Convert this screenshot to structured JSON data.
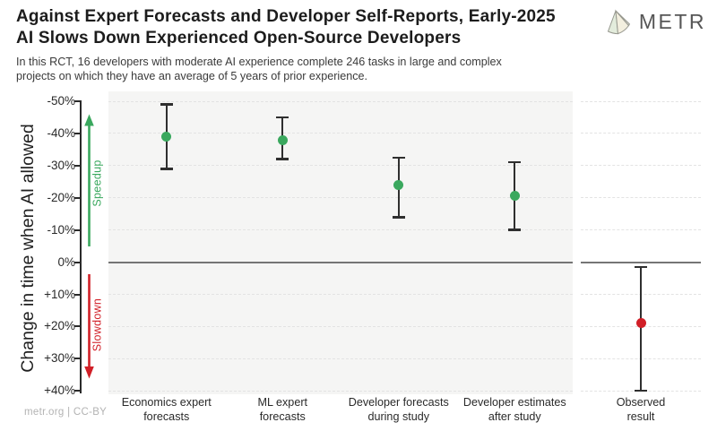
{
  "header": {
    "title_line1": "Against Expert Forecasts and Developer Self-Reports, Early-2025",
    "title_line2": "AI Slows Down Experienced Open-Source Developers",
    "subtitle_line1": "In this RCT, 16 developers with moderate AI experience complete 246 tasks in large and complex",
    "subtitle_line2": "projects on which they have an average of 5 years of prior experience.",
    "logo_text": "METR"
  },
  "footer": {
    "credit": "metr.org | CC-BY"
  },
  "colors": {
    "speedup_green": "#3aa85e",
    "slowdown_red": "#d11f27",
    "errorbar": "#2f2f2f",
    "panel_background": "#f5f5f4",
    "gridline": "#e3e3e3",
    "zero_line": "#757575"
  },
  "chart_data": {
    "type": "scatter",
    "title": "Against Expert Forecasts and Developer Self-Reports, Early-2025 AI Slows Down Experienced Open-Source Developers",
    "subtitle": "In this RCT, 16 developers with moderate AI experience complete 246 tasks in large and complex projects on which they have an average of 5 years of prior experience.",
    "ylabel": "Change in time when AI allowed",
    "ylim": [
      -50,
      40
    ],
    "y_axis_inverted_note": "negative (speedup) values at top, positive (slowdown) at bottom",
    "grid": "horizontal dashed gridlines at each 10% tick; solid gray line at 0%",
    "ytick_values": [
      -50,
      -40,
      -30,
      -20,
      -10,
      0,
      10,
      20,
      30,
      40
    ],
    "ytick_labels": [
      "-50%",
      "-40%",
      "-30%",
      "-20%",
      "-10%",
      "0%",
      "+10%",
      "+20%",
      "+30%",
      "+40%"
    ],
    "annotations": {
      "speedup": "Speedup",
      "slowdown": "Slowdown"
    },
    "points": [
      {
        "label_line1": "Economics expert",
        "label_line2": "forecasts",
        "value": -39,
        "ci": [
          -49,
          -29
        ],
        "color": "green",
        "panel": "forecasts"
      },
      {
        "label_line1": "ML expert",
        "label_line2": "forecasts",
        "value": -38,
        "ci": [
          -45,
          -32
        ],
        "color": "green",
        "panel": "forecasts"
      },
      {
        "label_line1": "Developer forecasts",
        "label_line2": "during study",
        "value": -24,
        "ci": [
          -32.5,
          -14
        ],
        "color": "green",
        "panel": "forecasts"
      },
      {
        "label_line1": "Developer estimates",
        "label_line2": "after study",
        "value": -20.5,
        "ci": [
          -31,
          -10
        ],
        "color": "green",
        "panel": "forecasts"
      },
      {
        "label_line1": "Observed",
        "label_line2": "result",
        "value": 19,
        "ci": [
          1.5,
          40
        ],
        "color": "red",
        "panel": "observed"
      }
    ]
  }
}
